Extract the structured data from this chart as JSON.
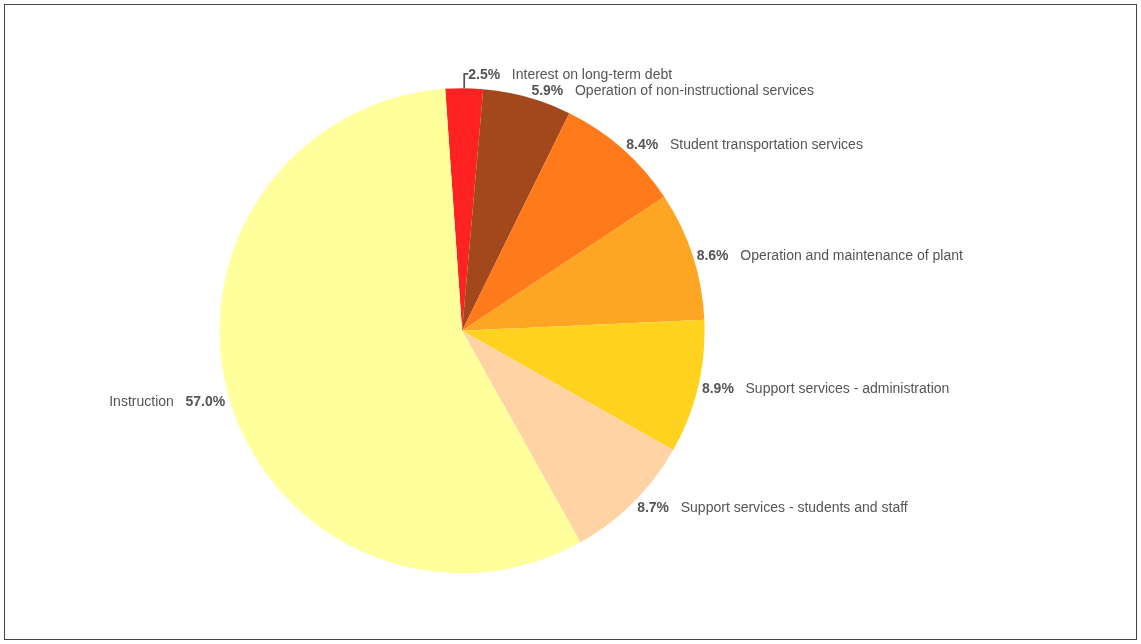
{
  "chart_data": {
    "type": "pie",
    "categories": [
      "Interest on long-term debt",
      "Operation of non-instructional services",
      "Student transportation services",
      "Operation and maintenance of plant",
      "Support services - administration",
      "Support services - students and staff",
      "Instruction"
    ],
    "values": [
      2.5,
      5.9,
      8.4,
      8.6,
      8.9,
      8.7,
      57.0
    ],
    "colors": [
      "#ff2222",
      "#a3481c",
      "#ff7a1a",
      "#ffa524",
      "#ffd21f",
      "#ffd3a3",
      "#ffff9c"
    ],
    "value_labels": [
      "2.5%",
      "5.9%",
      "8.4%",
      "8.6%",
      "8.9%",
      "8.7%",
      "57.0%"
    ],
    "legend": false
  }
}
